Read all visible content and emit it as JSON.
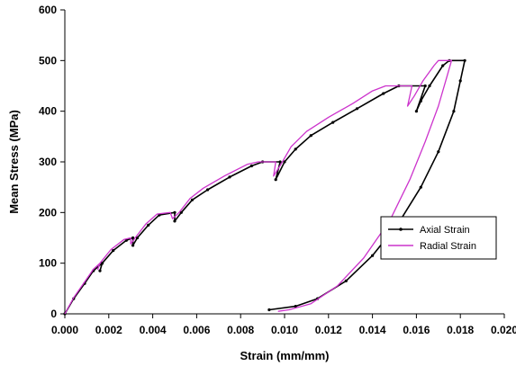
{
  "chart_data": {
    "type": "line",
    "title": "",
    "xlabel": "Strain (mm/mm)",
    "ylabel": "Mean  Stress (MPa)",
    "xlim": [
      0,
      0.02
    ],
    "ylim": [
      0,
      600
    ],
    "x_ticks": [
      0,
      0.002,
      0.004,
      0.006,
      0.008,
      0.01,
      0.012,
      0.014,
      0.016,
      0.018,
      0.02
    ],
    "x_tick_labels": [
      "0.000",
      "0.002",
      "0.004",
      "0.006",
      "0.008",
      "0.010",
      "0.012",
      "0.014",
      "0.016",
      "0.018",
      "0.020"
    ],
    "y_ticks": [
      0,
      100,
      200,
      300,
      400,
      500,
      600
    ],
    "y_tick_labels": [
      "0",
      "100",
      "200",
      "300",
      "400",
      "500",
      "600"
    ],
    "grid": false,
    "legend_position": "lower-right",
    "series": [
      {
        "name": "Axial Strain",
        "color": "#000000",
        "marker": "dot",
        "points": [
          [
            0,
            0
          ],
          [
            0.0004,
            30
          ],
          [
            0.0009,
            60
          ],
          [
            0.0013,
            85
          ],
          [
            0.0017,
            100
          ],
          [
            0.0016,
            85
          ],
          [
            0.0017,
            100
          ],
          [
            0.0022,
            125
          ],
          [
            0.0028,
            145
          ],
          [
            0.0031,
            150
          ],
          [
            0.0031,
            135
          ],
          [
            0.0033,
            150
          ],
          [
            0.0038,
            175
          ],
          [
            0.0043,
            195
          ],
          [
            0.005,
            200
          ],
          [
            0.005,
            183
          ],
          [
            0.0053,
            200
          ],
          [
            0.0058,
            225
          ],
          [
            0.0065,
            245
          ],
          [
            0.0075,
            270
          ],
          [
            0.0085,
            292
          ],
          [
            0.009,
            300
          ],
          [
            0.0098,
            300
          ],
          [
            0.0096,
            265
          ],
          [
            0.01,
            300
          ],
          [
            0.0105,
            325
          ],
          [
            0.0112,
            352
          ],
          [
            0.0122,
            378
          ],
          [
            0.0133,
            405
          ],
          [
            0.0145,
            435
          ],
          [
            0.0152,
            450
          ],
          [
            0.0164,
            450
          ],
          [
            0.016,
            400
          ],
          [
            0.0162,
            420
          ],
          [
            0.0166,
            450
          ],
          [
            0.0172,
            490
          ],
          [
            0.0175,
            500
          ],
          [
            0.0182,
            500
          ],
          [
            0.018,
            460
          ],
          [
            0.0177,
            400
          ],
          [
            0.017,
            320
          ],
          [
            0.0162,
            250
          ],
          [
            0.0152,
            180
          ],
          [
            0.014,
            115
          ],
          [
            0.0128,
            65
          ],
          [
            0.0115,
            30
          ],
          [
            0.0105,
            15
          ],
          [
            0.0093,
            8
          ]
        ]
      },
      {
        "name": "Radial Strain",
        "color": "#cc33cc",
        "marker": "none",
        "points": [
          [
            0,
            0
          ],
          [
            0.0004,
            32
          ],
          [
            0.0009,
            63
          ],
          [
            0.0013,
            88
          ],
          [
            0.0016,
            100
          ],
          [
            0.0015,
            88
          ],
          [
            0.0016,
            100
          ],
          [
            0.0021,
            127
          ],
          [
            0.0027,
            147
          ],
          [
            0.003,
            150
          ],
          [
            0.003,
            138
          ],
          [
            0.0032,
            150
          ],
          [
            0.0037,
            178
          ],
          [
            0.0042,
            197
          ],
          [
            0.0048,
            200
          ],
          [
            0.0049,
            188
          ],
          [
            0.0052,
            200
          ],
          [
            0.0057,
            228
          ],
          [
            0.0063,
            248
          ],
          [
            0.0073,
            273
          ],
          [
            0.0083,
            295
          ],
          [
            0.0088,
            300
          ],
          [
            0.0096,
            300
          ],
          [
            0.0095,
            272
          ],
          [
            0.0099,
            300
          ],
          [
            0.0103,
            330
          ],
          [
            0.011,
            360
          ],
          [
            0.012,
            388
          ],
          [
            0.0131,
            415
          ],
          [
            0.014,
            440
          ],
          [
            0.0146,
            450
          ],
          [
            0.0158,
            450
          ],
          [
            0.0156,
            410
          ],
          [
            0.0159,
            430
          ],
          [
            0.0163,
            460
          ],
          [
            0.0168,
            490
          ],
          [
            0.017,
            500
          ],
          [
            0.0176,
            500
          ],
          [
            0.0174,
            470
          ],
          [
            0.017,
            410
          ],
          [
            0.0164,
            340
          ],
          [
            0.0157,
            265
          ],
          [
            0.0148,
            185
          ],
          [
            0.0136,
            110
          ],
          [
            0.0124,
            55
          ],
          [
            0.0112,
            20
          ],
          [
            0.0102,
            8
          ],
          [
            0.0097,
            5
          ]
        ]
      }
    ]
  }
}
